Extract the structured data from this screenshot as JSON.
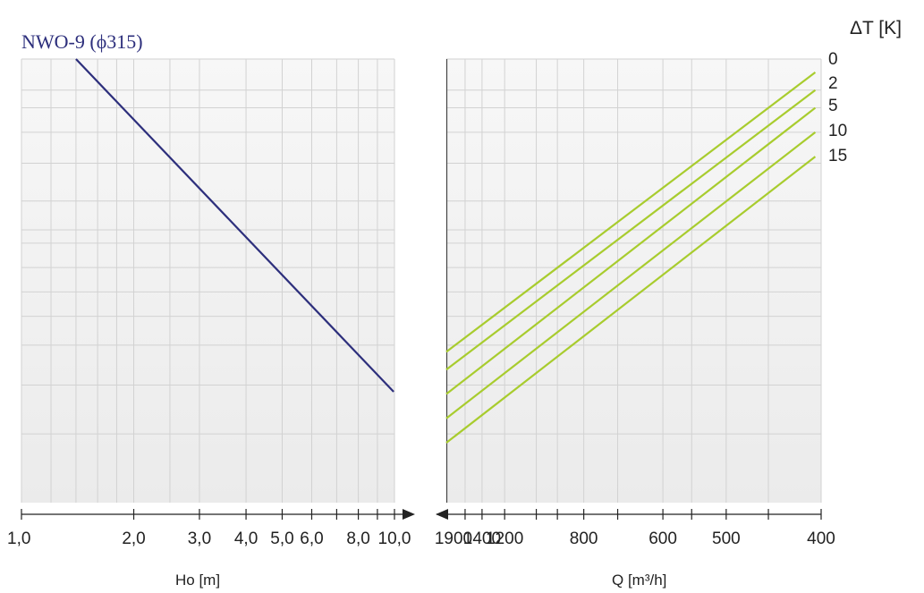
{
  "chart_data": {
    "type": "line",
    "title": "NWO-9 (ϕ315)",
    "colors": {
      "head_line": "#2d2f7c",
      "flow_lines": "#a8cc2e",
      "plot_bg": "#efefef",
      "grid": "#d2d2d2"
    },
    "left_panel": {
      "xlabel": "Ho  [m]",
      "scale": "log",
      "xlim": [
        1.0,
        10.0
      ],
      "tick_labels": [
        "1,0",
        "2,0",
        "3,0",
        "4,0",
        "5,0",
        "6,0",
        "8,0",
        "10,0"
      ],
      "tick_values": [
        1,
        2,
        3,
        4,
        5,
        6,
        8,
        10
      ],
      "series": [
        {
          "x": [
            1.4,
            9.95
          ],
          "y": [
            1.0,
            0.25
          ]
        }
      ]
    },
    "right_panel": {
      "xlabel": "Q [m³/h]",
      "scale": "reciprocal",
      "xlim": [
        1900,
        400
      ],
      "tick_labels": [
        "1900",
        "1400",
        "1200",
        "800",
        "600",
        "500",
        "400"
      ],
      "tick_values": [
        1900,
        1400,
        1200,
        800,
        600,
        500,
        400
      ],
      "legend_title": "ΔT [K]",
      "legend_placement": "right",
      "series": [
        {
          "name": "0",
          "x": [
            1900,
            405
          ],
          "y": [
            0.34,
            0.97
          ]
        },
        {
          "name": "2",
          "x": [
            1900,
            405
          ],
          "y": [
            0.3,
            0.93
          ]
        },
        {
          "name": "5",
          "x": [
            1900,
            405
          ],
          "y": [
            0.245,
            0.89
          ]
        },
        {
          "name": "10",
          "x": [
            1900,
            405
          ],
          "y": [
            0.19,
            0.835
          ]
        },
        {
          "name": "15",
          "x": [
            1900,
            405
          ],
          "y": [
            0.135,
            0.78
          ]
        }
      ]
    },
    "ylim": [
      0,
      1
    ],
    "grid": true
  }
}
